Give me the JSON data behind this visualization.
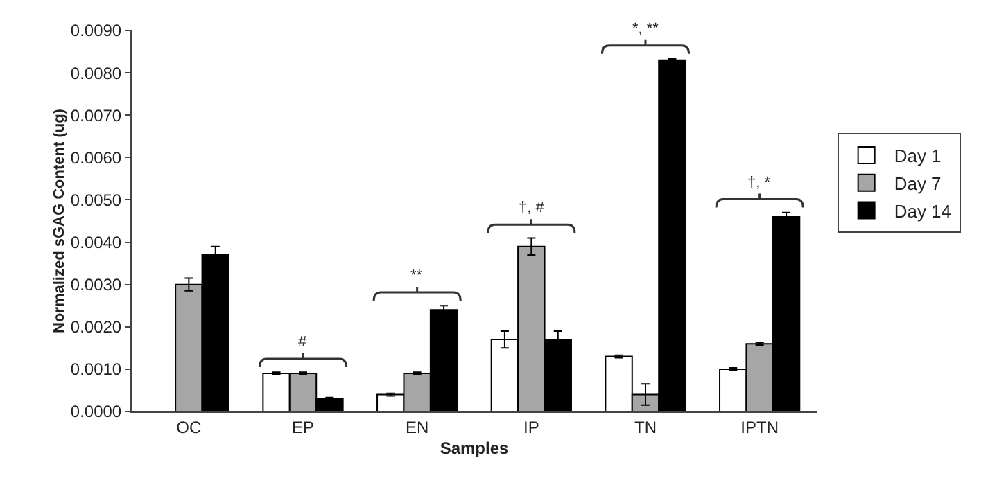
{
  "chart_data": {
    "type": "bar",
    "xlabel": "Samples",
    "ylabel": "Normalized sGAG Content (ug)",
    "categories": [
      "OC",
      "EP",
      "EN",
      "IP",
      "TN",
      "IPTN"
    ],
    "series": [
      {
        "name": "Day 1",
        "color": "#ffffff",
        "values": [
          null,
          0.0009,
          0.0004,
          0.0017,
          0.0013,
          0.001
        ],
        "errors": [
          null,
          3e-05,
          3e-05,
          0.0002,
          3e-05,
          3e-05
        ]
      },
      {
        "name": "Day 7",
        "color": "#a6a6a6",
        "values": [
          0.003,
          0.0009,
          0.0009,
          0.0039,
          0.0004,
          0.0016
        ],
        "errors": [
          0.00015,
          3e-05,
          3e-05,
          0.0002,
          0.00025,
          3e-05
        ]
      },
      {
        "name": "Day 14",
        "color": "#000000",
        "values": [
          0.0037,
          0.0003,
          0.0024,
          0.0017,
          0.0083,
          0.0046
        ],
        "errors": [
          0.0002,
          3e-05,
          0.0001,
          0.0002,
          3e-05,
          0.0001
        ]
      }
    ],
    "ylim": [
      0,
      0.009
    ],
    "yticks": [
      {
        "value": 0,
        "label": "0.0000"
      },
      {
        "value": 0.001,
        "label": "0.0010"
      },
      {
        "value": 0.002,
        "label": "0.0020"
      },
      {
        "value": 0.003,
        "label": "0.0030"
      },
      {
        "value": 0.004,
        "label": "0.0040"
      },
      {
        "value": 0.005,
        "label": "0.0050"
      },
      {
        "value": 0.006,
        "label": "0.0060"
      },
      {
        "value": 0.007,
        "label": "0.0070"
      },
      {
        "value": 0.008,
        "label": "0.0080"
      },
      {
        "value": 0.009,
        "label": "0.0090"
      }
    ],
    "grid": false,
    "legend": "right",
    "annotations": [
      "#",
      "**",
      "†, #",
      "*, **",
      "†, *"
    ]
  }
}
